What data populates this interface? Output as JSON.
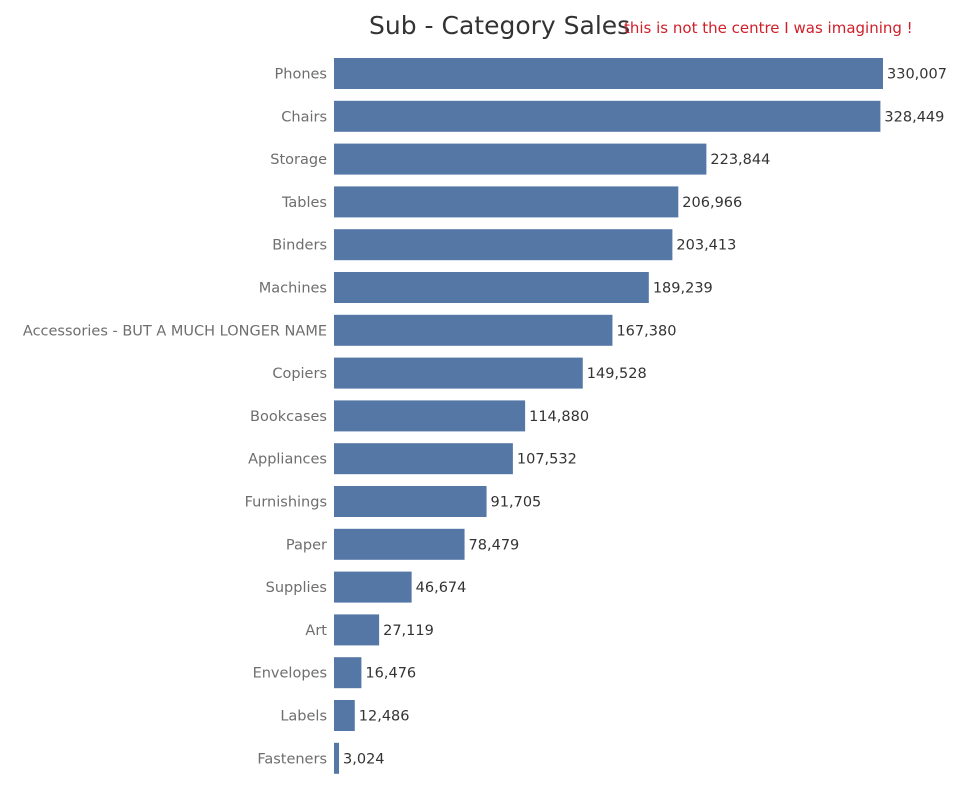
{
  "chart_data": {
    "type": "bar",
    "orientation": "horizontal",
    "title": "Sub - Category Sales",
    "annotation": "this is not the centre I was imagining !",
    "categories": [
      "Phones",
      "Chairs",
      "Storage",
      "Tables",
      "Binders",
      "Machines",
      "Accessories - BUT A MUCH LONGER NAME",
      "Copiers",
      "Bookcases",
      "Appliances",
      "Furnishings",
      "Paper",
      "Supplies",
      "Art",
      "Envelopes",
      "Labels",
      "Fasteners"
    ],
    "values": [
      330007,
      328449,
      223844,
      206966,
      203413,
      189239,
      167380,
      149528,
      114880,
      107532,
      91705,
      78479,
      46674,
      27119,
      16476,
      12486,
      3024
    ],
    "value_labels": [
      "330,007",
      "328,449",
      "223,844",
      "206,966",
      "203,413",
      "189,239",
      "167,380",
      "149,528",
      "114,880",
      "107,532",
      "91,705",
      "78,479",
      "46,674",
      "27,119",
      "16,476",
      "12,486",
      "3,024"
    ],
    "grid": false,
    "colors": {
      "bar": "#5577a6",
      "title": "#333333",
      "annotation": "#d0202a",
      "category_label": "#6e6e6e",
      "value_label": "#333333"
    }
  }
}
